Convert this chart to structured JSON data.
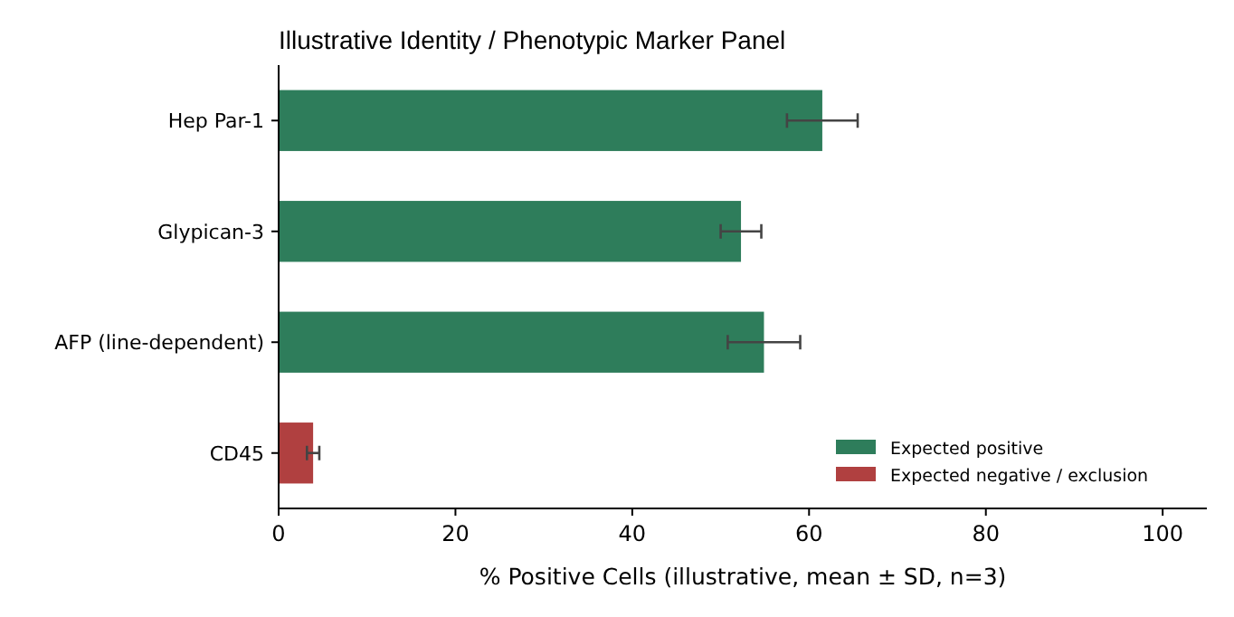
{
  "chart_data": {
    "type": "bar",
    "orientation": "horizontal",
    "title": "Illustrative Identity / Phenotypic Marker Panel",
    "xlabel": "% Positive Cells (illustrative, mean ± SD, n=3)",
    "categories": [
      "Hep Par-1",
      "Glypican-3",
      "AFP (line-dependent)",
      "CD45"
    ],
    "series": [
      {
        "name": "Expected positive",
        "color": "#2e7d5b",
        "values": [
          61.5,
          52.3,
          54.9,
          null
        ],
        "errors": [
          4.0,
          2.3,
          4.1,
          null
        ]
      },
      {
        "name": "Expected negative / exclusion",
        "color": "#b04040",
        "values": [
          null,
          null,
          null,
          3.9
        ],
        "errors": [
          null,
          null,
          null,
          0.7
        ]
      }
    ],
    "xlim": [
      0,
      105
    ],
    "xticks": [
      0,
      20,
      40,
      60,
      80,
      100
    ],
    "grid": false,
    "legend": "bottom right"
  }
}
